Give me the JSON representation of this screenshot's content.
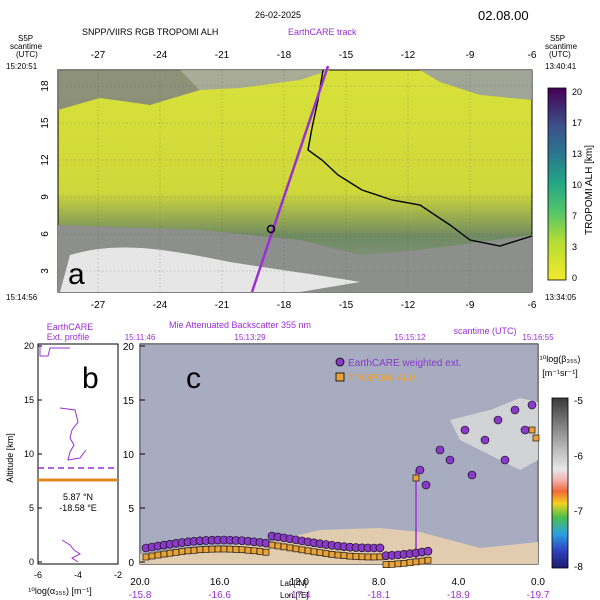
{
  "header": {
    "date": "26-02-2025",
    "time": "02.08.00",
    "left_products": "SNPP/VIIRS RGB    TROPOMI ALH",
    "track_label": "EarthCARE track",
    "s5p_left": [
      "S5P",
      "scantime",
      "(UTC)"
    ],
    "s5p_right": [
      "S5P",
      "scantime",
      "(UTC)"
    ],
    "time_tl": "15:20:51",
    "time_bl": "15:14:56",
    "time_tr": "13:40:41",
    "time_br": "13:34:05"
  },
  "map": {
    "panel_label": "a",
    "lon_ticks": [
      "-27",
      "-24",
      "-21",
      "-18",
      "-15",
      "-12",
      "-9",
      "-6"
    ],
    "lat_ticks": [
      "18",
      "15",
      "12",
      "9",
      "6",
      "3"
    ],
    "colorbar_label": "TROPOMI ALH [km]",
    "colorbar_ticks": [
      "20",
      "17",
      "13",
      "10",
      "7",
      "3",
      "0"
    ]
  },
  "profile": {
    "panel_label": "b",
    "title": [
      "EarthCARE",
      "Ext. profile"
    ],
    "ylabel": "Altitude [km]",
    "yticks": [
      "20",
      "15",
      "10",
      "5",
      "0"
    ],
    "xticks": [
      "-6",
      "-4",
      "-2"
    ],
    "xlabel": "¹⁰log(α₃₅₅) [m⁻¹]",
    "location_lat": "5.87 °N",
    "location_lon": "-18.58 °E"
  },
  "curtain": {
    "panel_label": "c",
    "title": "Mie Attenuated Backscatter 355 nm",
    "time_ticks": [
      "15:11:46",
      "15:13:29",
      "15:15:12",
      "15:16:55"
    ],
    "scantime_label": "scantime (UTC)",
    "legend": [
      "EarthCARE weighted ext.",
      "TROPOMI ALH"
    ],
    "yticks": [
      "20",
      "15",
      "10",
      "5",
      "0"
    ],
    "lat_ticks": [
      "20.0",
      "16.0",
      "12.0",
      "8.0",
      "4.0",
      "0.0"
    ],
    "lon_ticks": [
      "-15.8",
      "-16.6",
      "-17.4",
      "-18.1",
      "-18.9",
      "-19.7"
    ],
    "lat_label": "Lat [°N]",
    "lon_label": "Lon [°E]",
    "colorbar_label": "¹⁰log(β₃₅₅)",
    "colorbar_unit": "[m⁻¹sr⁻¹]",
    "colorbar_ticks": [
      "-5",
      "-6",
      "-7",
      "-8"
    ]
  }
}
